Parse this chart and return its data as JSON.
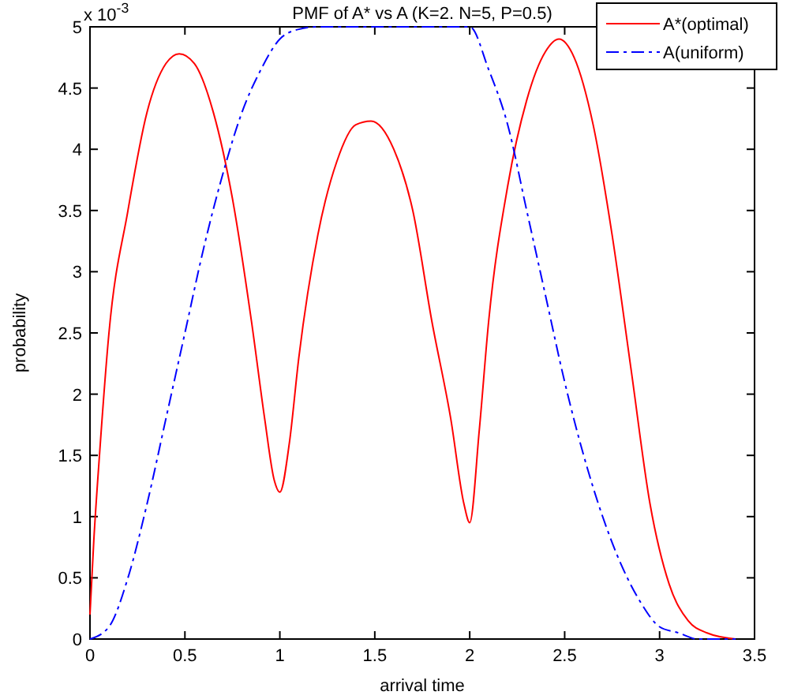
{
  "chart_data": {
    "type": "line",
    "title": "PMF of A* vs A (K=2. N=5, P=0.5)",
    "xlabel": "arrival time",
    "ylabel": "probability",
    "annotations": [
      "x 10$^{-3}$"
    ],
    "xlim": [
      0,
      3.5
    ],
    "xticks": [
      0,
      0.5,
      1,
      1.5,
      2,
      2.5,
      3,
      3.5
    ],
    "ylim": [
      0,
      5
    ],
    "yticks": [
      0,
      0.5,
      1,
      1.5,
      2,
      2.5,
      3,
      3.5,
      4,
      4.5,
      5
    ],
    "legend": "top right",
    "marker": "none",
    "series": [
      {
        "name": "A*(optimal)",
        "color": "#ff0000",
        "line_style": "solid",
        "x": [
          0,
          0.02,
          0.05,
          0.1,
          0.2,
          0.3,
          0.4,
          0.47,
          0.55,
          0.65,
          0.75,
          0.85,
          0.92,
          0.97,
          1.0,
          1.05,
          1.1,
          1.2,
          1.3,
          1.4,
          1.48,
          1.6,
          1.7,
          1.8,
          1.9,
          1.97,
          2.0,
          2.05,
          2.1,
          2.2,
          2.3,
          2.4,
          2.47,
          2.55,
          2.65,
          2.75,
          2.85,
          2.95,
          3.05,
          3.15,
          3.25,
          3.4
        ],
        "values": [
          0.2,
          0.8,
          1.5,
          2.5,
          3.5,
          4.3,
          4.7,
          4.78,
          4.7,
          4.3,
          3.6,
          2.6,
          1.8,
          1.3,
          1.2,
          1.6,
          2.3,
          3.3,
          3.9,
          4.2,
          4.23,
          4.0,
          3.5,
          2.6,
          1.8,
          1.1,
          0.95,
          1.7,
          2.6,
          3.7,
          4.4,
          4.8,
          4.9,
          4.75,
          4.2,
          3.3,
          2.2,
          1.1,
          0.45,
          0.15,
          0.05,
          0
        ]
      },
      {
        "name": "A(uniform)",
        "color": "#0000ff",
        "line_style": "dashed",
        "x": [
          0,
          0.1,
          0.2,
          0.3,
          0.4,
          0.5,
          0.6,
          0.7,
          0.8,
          0.9,
          1.0,
          1.1,
          1.2,
          2.0,
          2.1,
          2.2,
          2.3,
          2.4,
          2.5,
          2.6,
          2.7,
          2.8,
          2.9,
          3.0,
          3.1,
          3.2,
          3.4
        ],
        "values": [
          0,
          0.1,
          0.5,
          1.1,
          1.8,
          2.5,
          3.2,
          3.8,
          4.3,
          4.65,
          4.9,
          4.98,
          5,
          5,
          4.65,
          4.2,
          3.5,
          2.8,
          2.1,
          1.5,
          1.0,
          0.6,
          0.3,
          0.1,
          0.05,
          0,
          0
        ]
      }
    ]
  }
}
